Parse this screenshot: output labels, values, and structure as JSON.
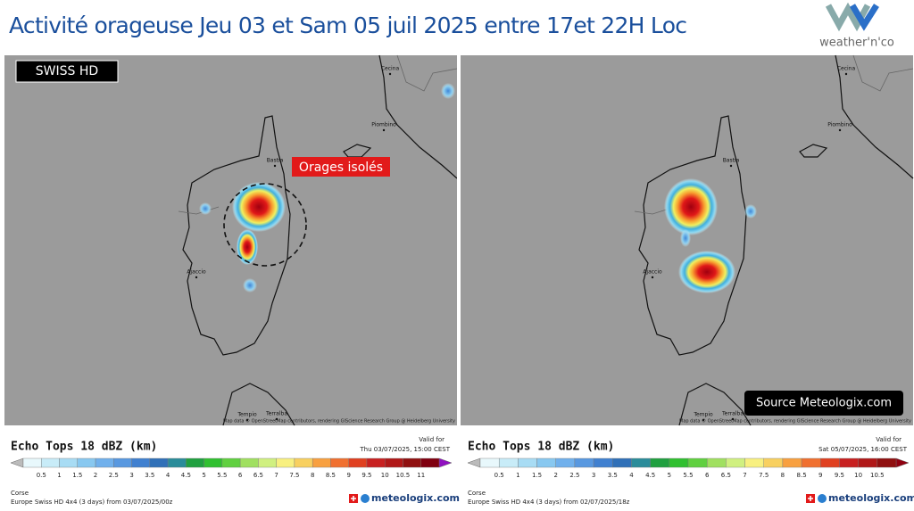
{
  "header": {
    "title": "Activité orageuse Jeu 03 et Sam 05 juil 2025  entre 17et 22H Loc",
    "logo": "weather'n'co"
  },
  "panels": [
    {
      "badge": "SWISS HD",
      "annotation": "Orages isolés",
      "places": [
        "Cecina",
        "Piombino",
        "Bastia",
        "Ajaccio",
        "Tempio",
        "Terralba"
      ],
      "attribution": "Map data © OpenStreetMap contributors, rendering GIScience Research Group @ Heidelberg University"
    },
    {
      "source": "Source Meteologix.com",
      "places": [
        "Cecina",
        "Piombino",
        "Bastia",
        "Ajaccio",
        "Tempio",
        "Terralba"
      ],
      "attribution": "Map data © OpenStreetMap contributors, rendering GIScience Research Group @ Heidelberg University"
    }
  ],
  "legends": [
    {
      "title": "Echo Tops 18 dBZ (km)",
      "valid_label": "Valid for",
      "valid_time": "Thu 03/07/2025, 15:00 CEST",
      "scale": [
        0.5,
        1,
        1.5,
        2,
        2.5,
        3,
        3.5,
        4,
        4.5,
        5,
        5.5,
        6,
        6.5,
        7,
        7.5,
        8,
        8.5,
        9,
        9.5,
        10,
        10.5,
        11
      ],
      "region": "Corse",
      "model": "Europe Swiss HD 4x4  (3 days)  from 03/07/2025/00z",
      "brand": "meteologix.com"
    },
    {
      "title": "Echo Tops 18 dBZ (km)",
      "valid_label": "Valid for",
      "valid_time": "Sat 05/07/2025, 16:00 CEST",
      "scale": [
        0.5,
        1,
        1.5,
        2,
        2.5,
        3,
        3.5,
        4,
        4.5,
        5,
        5.5,
        6,
        6.5,
        7,
        7.5,
        8,
        8.5,
        9,
        9.5,
        10,
        10.5
      ],
      "region": "Corse",
      "model": "Europe Swiss HD 4x4  (3 days)  from 02/07/2025/18z",
      "brand": "meteologix.com"
    }
  ]
}
